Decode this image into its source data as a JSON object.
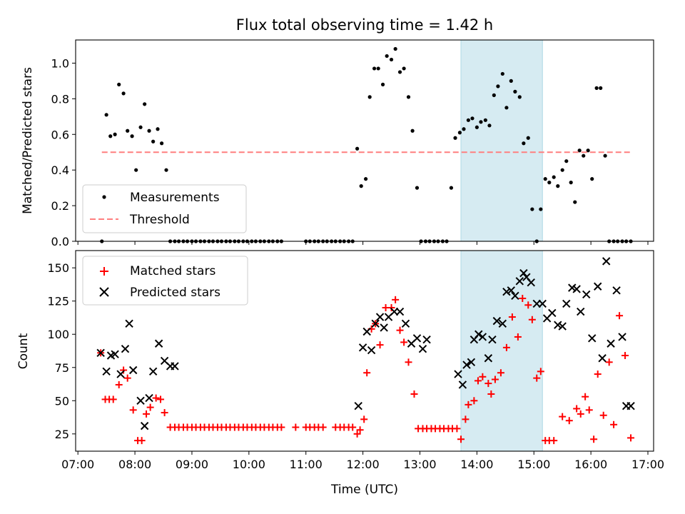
{
  "chart_data": [
    {
      "type": "scatter",
      "title": "Flux total observing time = 1.42 h",
      "ylabel": "Matched/Predicted stars",
      "xlabel": "",
      "xlim": [
        6.96,
        17.1
      ],
      "ylim": [
        0,
        1.13
      ],
      "yticks": [
        0.0,
        0.2,
        0.4,
        0.6,
        0.8,
        1.0
      ],
      "ytick_labels": [
        "0.0",
        "0.2",
        "0.4",
        "0.6",
        "0.8",
        "1.0"
      ],
      "highlight_span": [
        13.72,
        15.15
      ],
      "legend": [
        "Measurements",
        "Threshold"
      ],
      "legend_position": "lower left",
      "series": [
        {
          "name": "Measurements",
          "marker": "dot",
          "color": "#000000",
          "x": [
            7.42,
            7.5,
            7.57,
            7.65,
            7.72,
            7.8,
            7.87,
            7.95,
            8.02,
            8.1,
            8.17,
            8.25,
            8.32,
            8.4,
            8.47,
            8.55,
            8.62,
            8.7,
            8.77,
            8.85,
            8.92,
            9.0,
            9.07,
            9.15,
            9.22,
            9.3,
            9.37,
            9.45,
            9.52,
            9.6,
            9.67,
            9.75,
            9.82,
            9.9,
            9.97,
            10.05,
            10.12,
            10.2,
            10.27,
            10.35,
            10.42,
            10.5,
            10.57,
            11.0,
            11.07,
            11.15,
            11.22,
            11.3,
            11.37,
            11.45,
            11.52,
            11.6,
            11.67,
            11.75,
            11.82,
            11.9,
            11.97,
            12.05,
            12.12,
            12.2,
            12.27,
            12.35,
            12.42,
            12.5,
            12.57,
            12.65,
            12.72,
            12.8,
            12.87,
            12.95,
            13.02,
            13.1,
            13.17,
            13.25,
            13.32,
            13.4,
            13.47,
            13.55,
            13.62,
            13.7,
            13.77,
            13.85,
            13.92,
            14.0,
            14.07,
            14.15,
            14.22,
            14.3,
            14.37,
            14.45,
            14.52,
            14.6,
            14.67,
            14.75,
            14.82,
            14.9,
            14.97,
            15.05,
            15.12,
            15.2,
            15.27,
            15.35,
            15.42,
            15.5,
            15.57,
            15.65,
            15.72,
            15.8,
            15.87,
            15.95,
            16.02,
            16.1,
            16.17,
            16.25,
            16.32,
            16.4,
            16.47,
            16.55,
            16.62,
            16.7
          ],
          "y": [
            0.0,
            0.71,
            0.59,
            0.6,
            0.88,
            0.83,
            0.62,
            0.59,
            0.4,
            0.64,
            0.77,
            0.62,
            0.56,
            0.63,
            0.55,
            0.4,
            0.0,
            0.0,
            0.0,
            0.0,
            0.0,
            0.0,
            0.0,
            0.0,
            0.0,
            0.0,
            0.0,
            0.0,
            0.0,
            0.0,
            0.0,
            0.0,
            0.0,
            0.0,
            0.0,
            0.0,
            0.0,
            0.0,
            0.0,
            0.0,
            0.0,
            0.0,
            0.0,
            0.0,
            0.0,
            0.0,
            0.0,
            0.0,
            0.0,
            0.0,
            0.0,
            0.0,
            0.0,
            0.0,
            0.0,
            0.52,
            0.31,
            0.35,
            0.81,
            0.97,
            0.97,
            0.88,
            1.04,
            1.02,
            1.08,
            0.95,
            0.97,
            0.81,
            0.62,
            0.3,
            0.0,
            0.0,
            0.0,
            0.0,
            0.0,
            0.0,
            0.0,
            0.3,
            0.58,
            0.61,
            0.63,
            0.68,
            0.69,
            0.64,
            0.67,
            0.68,
            0.65,
            0.82,
            0.87,
            0.94,
            0.75,
            0.9,
            0.84,
            0.81,
            0.55,
            0.58,
            0.18,
            0.0,
            0.18,
            0.35,
            0.33,
            0.36,
            0.31,
            0.4,
            0.45,
            0.33,
            0.22,
            0.51,
            0.48,
            0.51,
            0.35,
            0.86,
            0.86,
            0.48,
            0.0,
            0.0,
            0.0,
            0.0,
            0.0,
            0.0
          ]
        },
        {
          "name": "Threshold",
          "style": "dashed",
          "color": "#ff7f7f",
          "x": [
            7.42,
            16.7
          ],
          "y": [
            0.5,
            0.5
          ]
        }
      ]
    },
    {
      "type": "scatter",
      "title": "",
      "ylabel": "Count",
      "xlabel": "Time (UTC)",
      "xlim": [
        6.96,
        17.1
      ],
      "ylim": [
        12,
        163
      ],
      "yticks": [
        25,
        50,
        75,
        100,
        125,
        150
      ],
      "ytick_labels": [
        "25",
        "50",
        "75",
        "100",
        "125",
        "150"
      ],
      "xticks": [
        7,
        8,
        9,
        10,
        11,
        12,
        13,
        14,
        15,
        16,
        17
      ],
      "xtick_labels": [
        "07:00",
        "08:00",
        "09:00",
        "10:00",
        "11:00",
        "12:00",
        "13:00",
        "14:00",
        "15:00",
        "16:00",
        "17:00"
      ],
      "highlight_span": [
        13.72,
        15.15
      ],
      "legend": [
        "Matched stars",
        "Predicted stars"
      ],
      "legend_position": "upper left",
      "series": [
        {
          "name": "Matched stars",
          "marker": "plus",
          "color": "#ff0000",
          "x": [
            7.4,
            7.48,
            7.55,
            7.62,
            7.72,
            7.8,
            7.87,
            7.97,
            8.05,
            8.12,
            8.2,
            8.27,
            8.37,
            8.45,
            8.52,
            8.62,
            8.7,
            8.77,
            8.85,
            8.92,
            9.0,
            9.07,
            9.15,
            9.22,
            9.3,
            9.37,
            9.45,
            9.52,
            9.6,
            9.67,
            9.75,
            9.82,
            9.9,
            9.97,
            10.05,
            10.12,
            10.2,
            10.27,
            10.35,
            10.42,
            10.5,
            10.57,
            10.82,
            11.0,
            11.07,
            11.15,
            11.22,
            11.3,
            11.52,
            11.6,
            11.67,
            11.75,
            11.82,
            11.9,
            11.95,
            12.02,
            12.07,
            12.15,
            12.22,
            12.3,
            12.4,
            12.5,
            12.57,
            12.65,
            12.72,
            12.8,
            12.9,
            12.97,
            13.05,
            13.12,
            13.2,
            13.27,
            13.35,
            13.42,
            13.5,
            13.57,
            13.65,
            13.72,
            13.8,
            13.85,
            13.95,
            14.02,
            14.1,
            14.2,
            14.25,
            14.32,
            14.42,
            14.52,
            14.62,
            14.72,
            14.8,
            14.9,
            14.97,
            15.05,
            15.12,
            15.2,
            15.27,
            15.35,
            15.5,
            15.62,
            15.75,
            15.82,
            15.9,
            15.97,
            16.05,
            16.12,
            16.22,
            16.32,
            16.4,
            16.5,
            16.6,
            16.7
          ],
          "y": [
            86,
            51,
            51,
            51,
            62,
            73,
            67,
            43,
            20,
            20,
            40,
            45,
            52,
            51,
            41,
            30,
            30,
            30,
            30,
            30,
            30,
            30,
            30,
            30,
            30,
            30,
            30,
            30,
            30,
            30,
            30,
            30,
            30,
            30,
            30,
            30,
            30,
            30,
            30,
            30,
            30,
            30,
            30,
            30,
            30,
            30,
            30,
            30,
            30,
            30,
            30,
            30,
            30,
            25,
            28,
            36,
            71,
            104,
            108,
            92,
            120,
            120,
            126,
            103,
            94,
            79,
            55,
            29,
            29,
            29,
            29,
            29,
            29,
            29,
            29,
            29,
            29,
            21,
            36,
            47,
            50,
            65,
            68,
            63,
            55,
            66,
            71,
            90,
            113,
            98,
            127,
            122,
            111,
            67,
            72,
            20,
            20,
            20,
            38,
            35,
            44,
            40,
            53,
            43,
            21,
            70,
            39,
            79,
            32,
            114,
            84,
            22
          ]
        },
        {
          "name": "Predicted stars",
          "marker": "x",
          "color": "#000000",
          "x": [
            7.4,
            7.5,
            7.58,
            7.65,
            7.75,
            7.83,
            7.9,
            7.97,
            8.1,
            8.17,
            8.25,
            8.32,
            8.42,
            8.52,
            8.62,
            8.7,
            11.92,
            12.0,
            12.07,
            12.15,
            12.22,
            12.3,
            12.37,
            12.45,
            12.55,
            12.65,
            12.75,
            12.85,
            12.95,
            13.05,
            13.12,
            13.67,
            13.75,
            13.82,
            13.9,
            13.95,
            14.03,
            14.1,
            14.2,
            14.27,
            14.35,
            14.45,
            14.52,
            14.6,
            14.67,
            14.75,
            14.82,
            14.87,
            14.95,
            15.05,
            15.15,
            15.23,
            15.32,
            15.42,
            15.5,
            15.57,
            15.67,
            15.75,
            15.82,
            15.92,
            16.02,
            16.12,
            16.2,
            16.27,
            16.35,
            16.45,
            16.55,
            16.62,
            16.7
          ],
          "y": [
            86,
            72,
            84,
            85,
            70,
            89,
            108,
            73,
            50,
            31,
            52,
            72,
            93,
            80,
            76,
            76,
            46,
            90,
            102,
            88,
            108,
            113,
            105,
            113,
            117,
            117,
            108,
            93,
            97,
            89,
            96,
            70,
            62,
            77,
            79,
            96,
            100,
            98,
            82,
            96,
            110,
            108,
            132,
            133,
            129,
            140,
            146,
            143,
            139,
            123,
            123,
            112,
            116,
            107,
            106,
            123,
            135,
            134,
            117,
            130,
            97,
            136,
            82,
            155,
            93,
            133,
            98,
            46,
            46
          ]
        }
      ]
    }
  ]
}
